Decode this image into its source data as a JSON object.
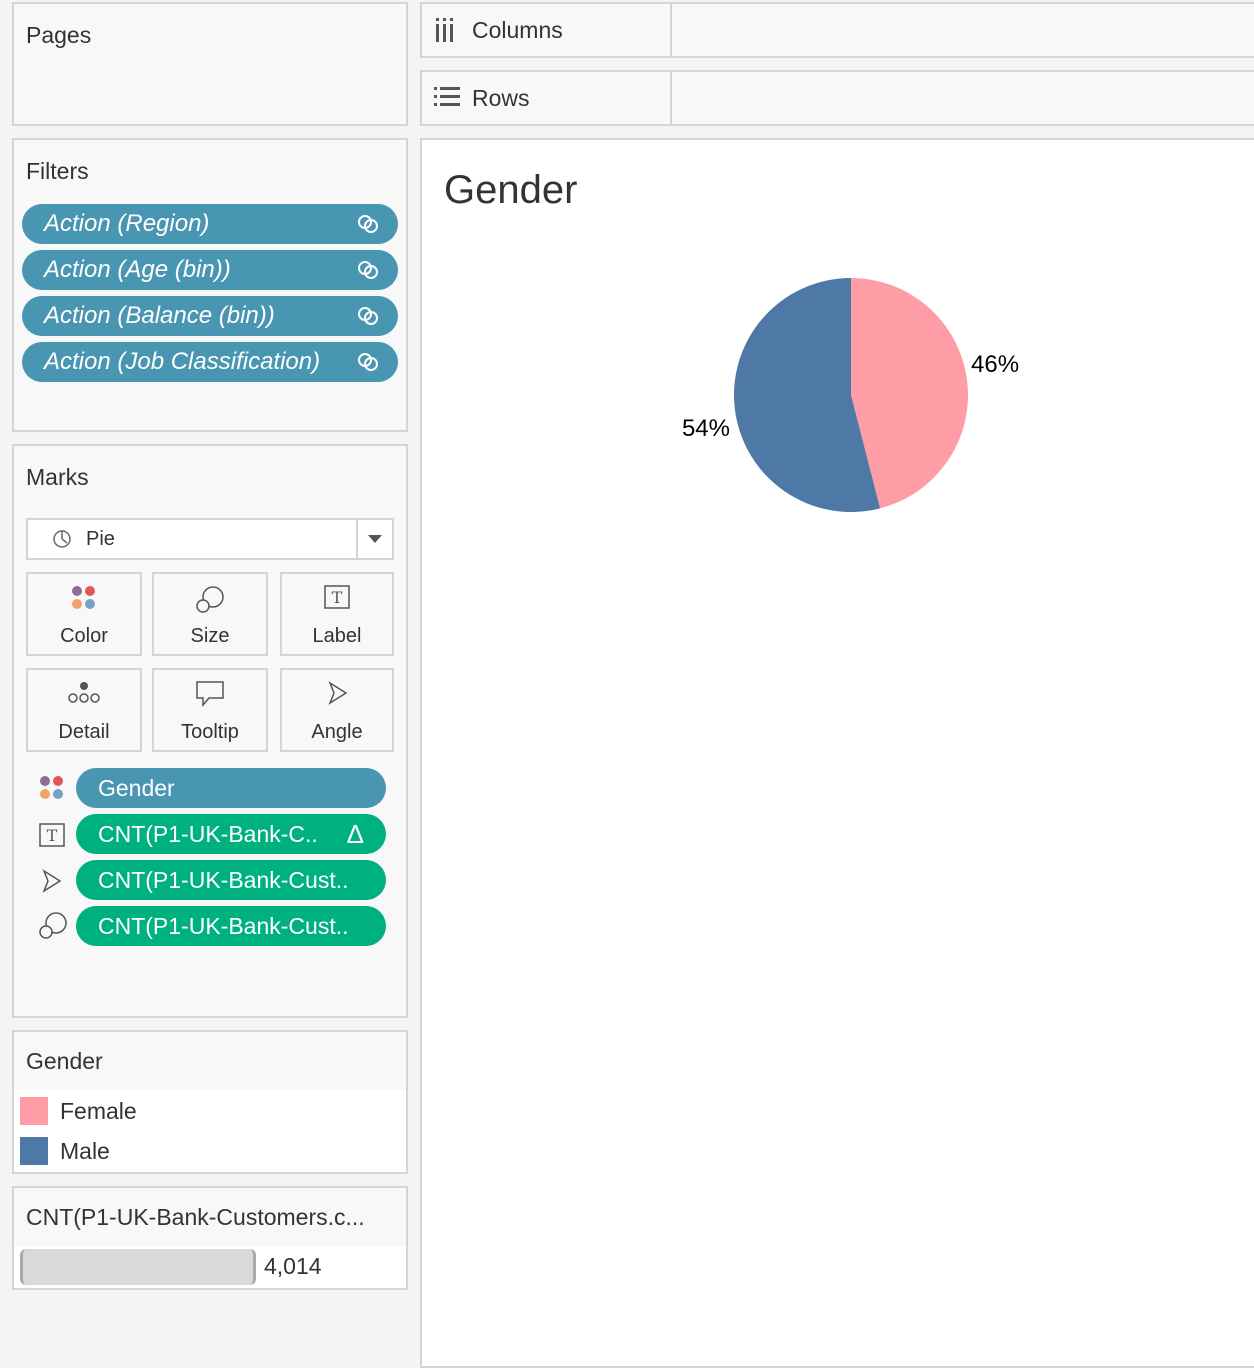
{
  "pages_card": {
    "title": "Pages"
  },
  "filters_card": {
    "title": "Filters",
    "items": [
      {
        "label": "Action (Region)"
      },
      {
        "label": "Action (Age (bin))"
      },
      {
        "label": "Action (Balance (bin))"
      },
      {
        "label": "Action (Job Classification)"
      }
    ]
  },
  "marks_card": {
    "title": "Marks",
    "mark_type": "Pie",
    "buttons": [
      "Color",
      "Size",
      "Label",
      "Detail",
      "Tooltip",
      "Angle"
    ],
    "fields": [
      {
        "label": "Gender",
        "color": "#4996b2",
        "role": "color"
      },
      {
        "label": "CNT(P1-UK-Bank-C..",
        "color": "#00b180",
        "role": "label",
        "suffix": "Δ"
      },
      {
        "label": "CNT(P1-UK-Bank-Cust..",
        "color": "#00b180",
        "role": "angle"
      },
      {
        "label": "CNT(P1-UK-Bank-Cust..",
        "color": "#00b180",
        "role": "size"
      }
    ]
  },
  "color_legend": {
    "title": "Gender",
    "items": [
      {
        "label": "Female",
        "color": "#ff9da7"
      },
      {
        "label": "Male",
        "color": "#4e79a7"
      }
    ]
  },
  "size_legend": {
    "title": "CNT(P1-UK-Bank-Customers.c...",
    "value": "4,014"
  },
  "shelves": {
    "columns": "Columns",
    "rows": "Rows"
  },
  "view": {
    "title": "Gender"
  },
  "chart_data": {
    "type": "pie",
    "title": "Gender",
    "categories": [
      "Female",
      "Male"
    ],
    "values": [
      46,
      54
    ],
    "labels": [
      "46%",
      "54%"
    ],
    "colors": [
      "#ff9da7",
      "#4e79a7"
    ]
  }
}
